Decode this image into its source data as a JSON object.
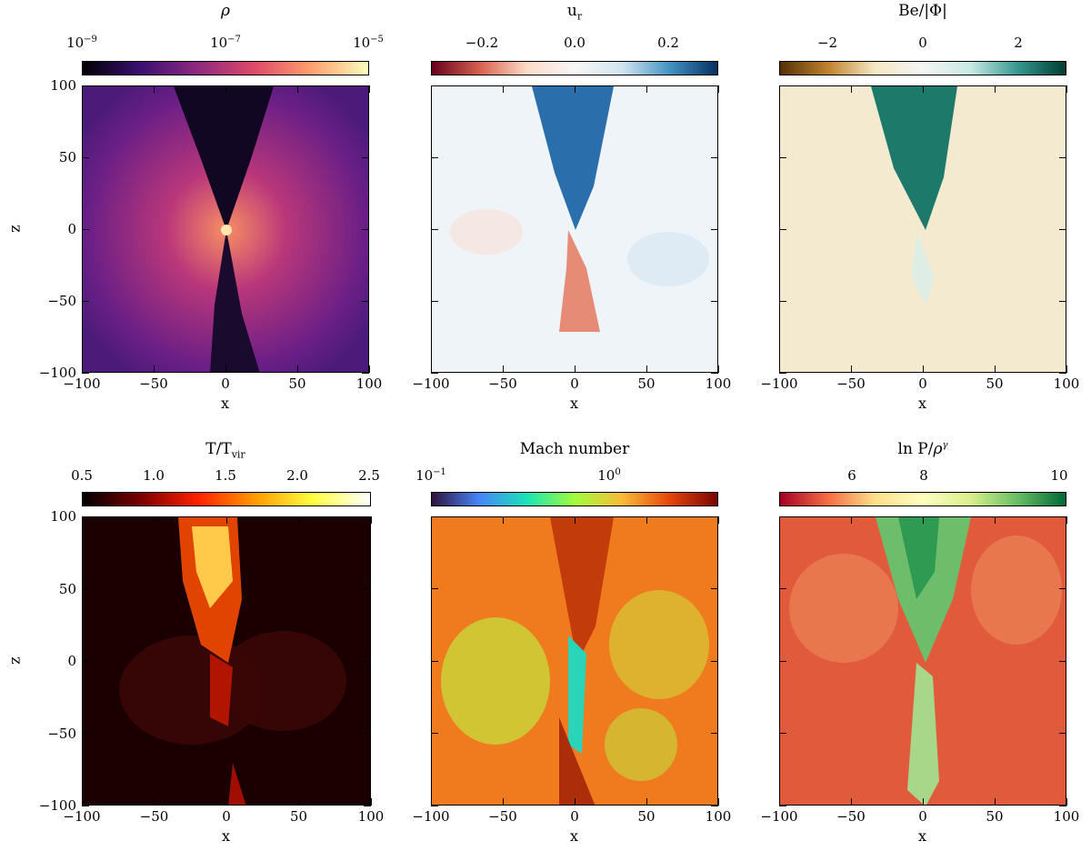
{
  "panels": [
    {
      "title": "ρ",
      "cbar_ticks": [
        "10⁻⁹",
        "10⁻⁷",
        "10⁻⁵"
      ],
      "colormap": [
        "#000004",
        "#3b0f70",
        "#8c2981",
        "#de4968",
        "#fe9f6d",
        "#fcfdbf"
      ]
    },
    {
      "title": "u_r",
      "cbar_ticks": [
        "−0.2",
        "0.0",
        "0.2"
      ],
      "colormap": [
        "#67001f",
        "#d6604d",
        "#fddbc7",
        "#f7f7f7",
        "#d1e5f0",
        "#4393c3",
        "#053061"
      ]
    },
    {
      "title": "Be/|Φ|",
      "cbar_ticks": [
        "−2",
        "0",
        "2"
      ],
      "colormap": [
        "#543005",
        "#bf812d",
        "#f6e8c3",
        "#f5f5f5",
        "#c7eae5",
        "#35978f",
        "#003c30"
      ]
    },
    {
      "title": "T/T_vir",
      "cbar_ticks": [
        "0.5",
        "1.0",
        "1.5",
        "2.0",
        "2.5"
      ],
      "colormap": [
        "#000000",
        "#7a0000",
        "#ff2000",
        "#ff9b00",
        "#ffff40",
        "#ffffff"
      ]
    },
    {
      "title": "Mach number",
      "cbar_ticks": [
        "10⁻¹",
        "10⁰"
      ],
      "colormap": [
        "#30123b",
        "#4686fb",
        "#1ae4b6",
        "#a2fc3c",
        "#fabb39",
        "#e4460a",
        "#7a0403"
      ]
    },
    {
      "title": "ln P/ρ^γ",
      "cbar_ticks": [
        "6",
        "8",
        "10"
      ],
      "colormap": [
        "#a50026",
        "#f46d43",
        "#fee08b",
        "#ffffbf",
        "#d9ef8b",
        "#66bd63",
        "#006837"
      ]
    }
  ],
  "axes": {
    "xlabel": "x",
    "ylabel": "z",
    "xticks": [
      "−100",
      "−50",
      "0",
      "50",
      "100"
    ],
    "yticks": [
      "100",
      "50",
      "0",
      "−50",
      "−100"
    ]
  }
}
